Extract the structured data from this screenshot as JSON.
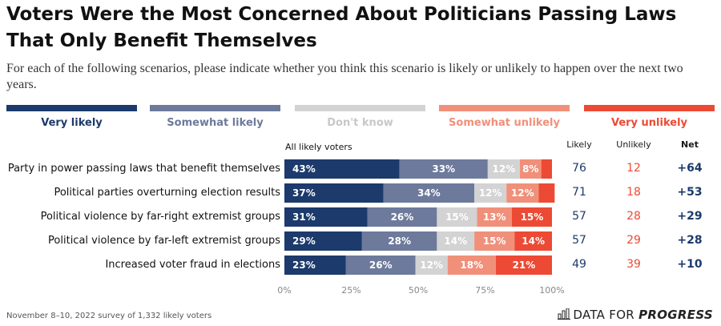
{
  "title": "Voters Were the Most Concerned About Politicians Passing Laws That Only Benefit Themselves",
  "subtitle": "For each of the following scenarios, please indicate whether you think this scenario is likely or unlikely to happen over the next two years.",
  "subgroup_label": "All likely voters",
  "footnote": "November 8–10, 2022 survey of 1,332 likely voters",
  "brand": {
    "part1": "DATA FOR ",
    "part2": "PROGRESS"
  },
  "colors": {
    "very_likely": "#1c3a6b",
    "somewhat_likely": "#6d7a9c",
    "dont_know": "#d3d3d3",
    "somewhat_unlikely": "#f0907a",
    "very_unlikely": "#ec4a34",
    "net": "#1c3a6b"
  },
  "columns": {
    "likely": "Likely",
    "unlikely": "Unlikely",
    "net": "Net"
  },
  "chart_data": {
    "type": "bar",
    "stacked": true,
    "orientation": "horizontal",
    "categories": [
      "Party in power passing laws that benefit themselves",
      "Political parties overturning election results",
      "Political violence by far-right extremist groups",
      "Political violence by far-left extremist groups",
      "Increased voter fraud in elections"
    ],
    "series": [
      {
        "name": "Very likely",
        "values": [
          43,
          37,
          31,
          29,
          23
        ],
        "labels": [
          "43%",
          "37%",
          "31%",
          "29%",
          "23%"
        ]
      },
      {
        "name": "Somewhat likely",
        "values": [
          33,
          34,
          26,
          28,
          26
        ],
        "labels": [
          "33%",
          "34%",
          "26%",
          "28%",
          "26%"
        ]
      },
      {
        "name": "Don't know",
        "values": [
          12,
          12,
          15,
          14,
          12
        ],
        "labels": [
          "12%",
          "12%",
          "15%",
          "14%",
          "12%"
        ]
      },
      {
        "name": "Somewhat unlikely",
        "values": [
          8,
          12,
          13,
          15,
          18
        ],
        "labels": [
          "8%",
          "12%",
          "13%",
          "15%",
          "18%"
        ]
      },
      {
        "name": "Very unlikely",
        "values": [
          4,
          6,
          15,
          14,
          21
        ],
        "labels": [
          "",
          "",
          "15%",
          "14%",
          "21%"
        ]
      }
    ],
    "likely": [
      "76",
      "71",
      "57",
      "57",
      "49"
    ],
    "unlikely": [
      "12",
      "18",
      "28",
      "29",
      "39"
    ],
    "net": [
      "+64",
      "+53",
      "+29",
      "+28",
      "+10"
    ],
    "xlim": [
      0,
      100
    ],
    "xticks": [
      "0%",
      "25%",
      "50%",
      "75%",
      "100%"
    ],
    "legend_position": "top"
  }
}
